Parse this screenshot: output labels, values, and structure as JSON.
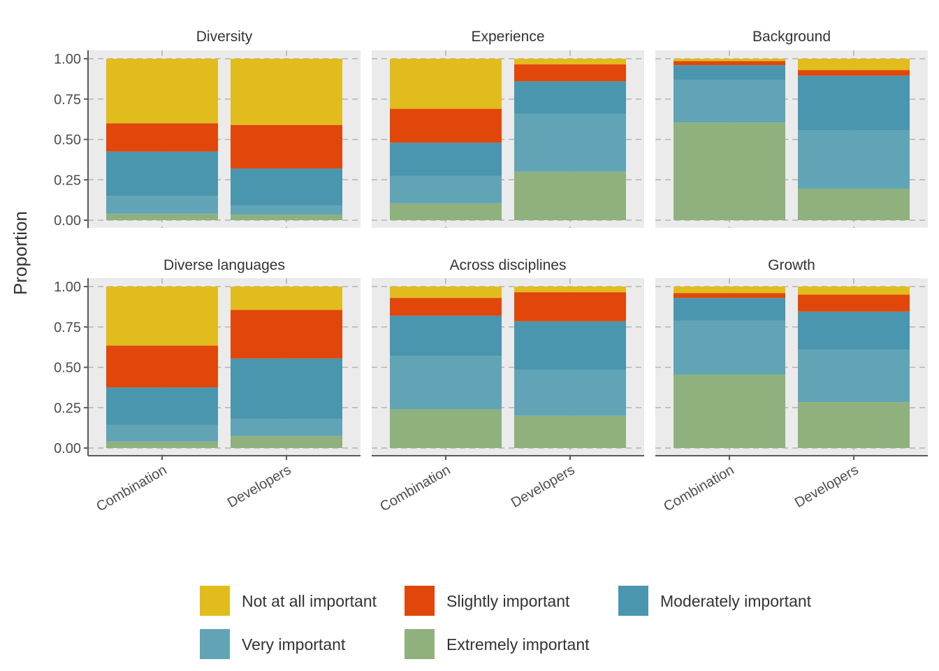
{
  "chart_data": {
    "type": "bar",
    "stacked": true,
    "faceted": true,
    "ylabel": "Proportion",
    "xlabel": "",
    "ylim": [
      0,
      1
    ],
    "y_ticks": [
      "0.00",
      "0.25",
      "0.50",
      "0.75",
      "1.00"
    ],
    "categories": [
      "Combination",
      "Developers"
    ],
    "legend": {
      "position": "bottom",
      "items": [
        {
          "name": "Not at all important",
          "color": "#E1BC1D"
        },
        {
          "name": "Slightly important",
          "color": "#E1470A"
        },
        {
          "name": "Moderately important",
          "color": "#4996AE"
        },
        {
          "name": "Very important",
          "color": "#61A4B5"
        },
        {
          "name": "Extremely important",
          "color": "#8FB17D"
        }
      ]
    },
    "stack_order": [
      "Extremely important",
      "Very important",
      "Moderately important",
      "Slightly important",
      "Not at all important"
    ],
    "facets": [
      {
        "title": "Diversity",
        "series": [
          {
            "name": "Extremely important",
            "values": [
              0.04,
              0.035
            ]
          },
          {
            "name": "Very important",
            "values": [
              0.11,
              0.055
            ]
          },
          {
            "name": "Moderately important",
            "values": [
              0.275,
              0.23
            ]
          },
          {
            "name": "Slightly important",
            "values": [
              0.175,
              0.27
            ]
          },
          {
            "name": "Not at all important",
            "values": [
              0.4,
              0.41
            ]
          }
        ]
      },
      {
        "title": "Experience",
        "series": [
          {
            "name": "Extremely important",
            "values": [
              0.105,
              0.3
            ]
          },
          {
            "name": "Very important",
            "values": [
              0.17,
              0.36
            ]
          },
          {
            "name": "Moderately important",
            "values": [
              0.205,
              0.2
            ]
          },
          {
            "name": "Slightly important",
            "values": [
              0.21,
              0.105
            ]
          },
          {
            "name": "Not at all important",
            "values": [
              0.31,
              0.035
            ]
          }
        ]
      },
      {
        "title": "Background",
        "series": [
          {
            "name": "Extremely important",
            "values": [
              0.605,
              0.195
            ]
          },
          {
            "name": "Very important",
            "values": [
              0.265,
              0.36
            ]
          },
          {
            "name": "Moderately important",
            "values": [
              0.09,
              0.34
            ]
          },
          {
            "name": "Slightly important",
            "values": [
              0.025,
              0.035
            ]
          },
          {
            "name": "Not at all important",
            "values": [
              0.015,
              0.07
            ]
          }
        ]
      },
      {
        "title": "Diverse languages",
        "series": [
          {
            "name": "Extremely important",
            "values": [
              0.04,
              0.075
            ]
          },
          {
            "name": "Very important",
            "values": [
              0.105,
              0.105
            ]
          },
          {
            "name": "Moderately important",
            "values": [
              0.23,
              0.375
            ]
          },
          {
            "name": "Slightly important",
            "values": [
              0.26,
              0.3
            ]
          },
          {
            "name": "Not at all important",
            "values": [
              0.365,
              0.145
            ]
          }
        ]
      },
      {
        "title": "Across disciplines",
        "series": [
          {
            "name": "Extremely important",
            "values": [
              0.24,
              0.2
            ]
          },
          {
            "name": "Very important",
            "values": [
              0.33,
              0.285
            ]
          },
          {
            "name": "Moderately important",
            "values": [
              0.25,
              0.3
            ]
          },
          {
            "name": "Slightly important",
            "values": [
              0.11,
              0.18
            ]
          },
          {
            "name": "Not at all important",
            "values": [
              0.07,
              0.035
            ]
          }
        ]
      },
      {
        "title": "Growth",
        "series": [
          {
            "name": "Extremely important",
            "values": [
              0.455,
              0.285
            ]
          },
          {
            "name": "Very important",
            "values": [
              0.335,
              0.325
            ]
          },
          {
            "name": "Moderately important",
            "values": [
              0.14,
              0.235
            ]
          },
          {
            "name": "Slightly important",
            "values": [
              0.03,
              0.105
            ]
          },
          {
            "name": "Not at all important",
            "values": [
              0.04,
              0.05
            ]
          }
        ]
      }
    ]
  }
}
